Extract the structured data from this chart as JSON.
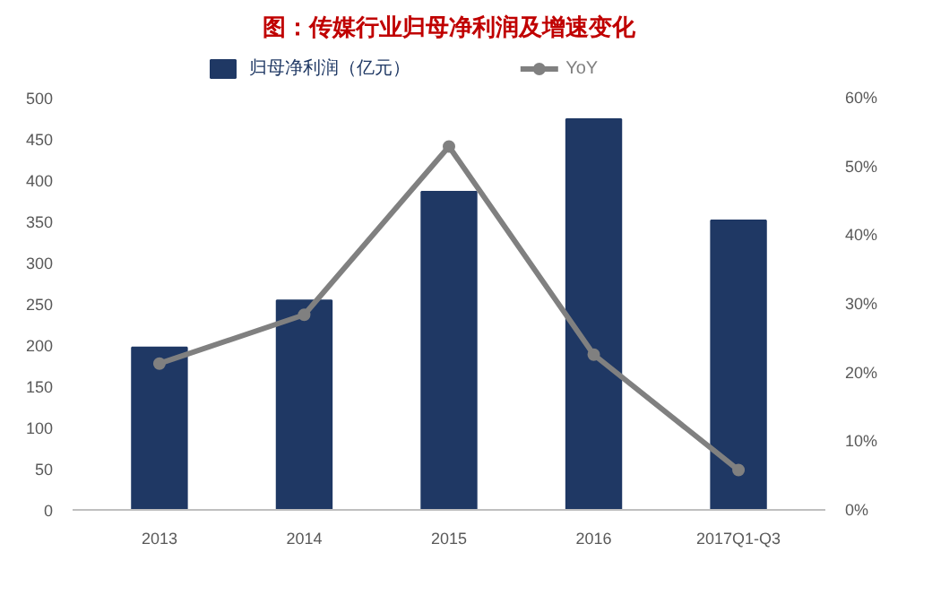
{
  "chart_data": {
    "type": "bar",
    "title": "图：传媒行业归母净利润及增速变化",
    "categories": [
      "2013",
      "2014",
      "2015",
      "2016",
      "2017Q1-Q3"
    ],
    "series": [
      {
        "name": "归母净利润（亿元）",
        "color": "#1f3864",
        "values": [
          197,
          254,
          386,
          474,
          351
        ]
      },
      {
        "name": "YoY",
        "type": "line",
        "axis": "y2",
        "color": "#808080",
        "marker": "circle",
        "values": [
          21.3,
          28.4,
          52.9,
          22.6,
          5.8
        ]
      }
    ],
    "ylim": [
      0,
      500
    ],
    "yticks": [
      0,
      50,
      100,
      150,
      200,
      250,
      300,
      350,
      400,
      450,
      500
    ],
    "y2lim": [
      0,
      60
    ],
    "y2ticks": [
      {
        "value": 0,
        "label": "0%"
      },
      {
        "value": 10,
        "label": "10%"
      },
      {
        "value": 20,
        "label": "20%"
      },
      {
        "value": 30,
        "label": "30%"
      },
      {
        "value": 40,
        "label": "40%"
      },
      {
        "value": 50,
        "label": "50%"
      },
      {
        "value": 60,
        "label": "60%"
      }
    ],
    "legend": "top",
    "grid": false
  }
}
